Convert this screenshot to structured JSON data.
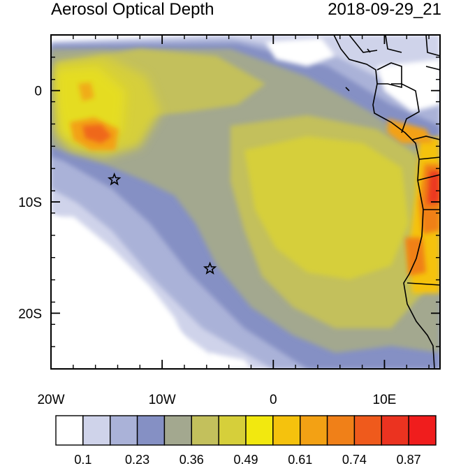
{
  "title": "Aerosol Optical Depth",
  "timestamp": "2018-09-29_21",
  "map": {
    "lon_range": [
      -20,
      15
    ],
    "lat_range": [
      -25,
      5
    ],
    "x_ticks": [
      {
        "value": -20,
        "label": "20W"
      },
      {
        "value": -10,
        "label": "10W"
      },
      {
        "value": 0,
        "label": "0"
      },
      {
        "value": 10,
        "label": "10E"
      }
    ],
    "y_ticks": [
      {
        "value": 0,
        "label": "0"
      },
      {
        "value": -10,
        "label": "10S"
      },
      {
        "value": -20,
        "label": "20S"
      }
    ],
    "markers": [
      {
        "type": "star",
        "lon": -14.3,
        "lat": -8.0
      },
      {
        "type": "star",
        "lon": -5.7,
        "lat": -16.0
      }
    ]
  },
  "colorbar": {
    "colors": [
      "#ffffff",
      "#cfd3ea",
      "#aab2d8",
      "#8590c4",
      "#a3a88f",
      "#c3c05c",
      "#d6cf3a",
      "#f2e80f",
      "#f5c20d",
      "#f3a114",
      "#f08018",
      "#ef5a1c",
      "#eb3320",
      "#f01d1d"
    ],
    "labels": [
      "0.1",
      "0.23",
      "0.36",
      "0.49",
      "0.61",
      "0.74",
      "0.87"
    ]
  }
}
